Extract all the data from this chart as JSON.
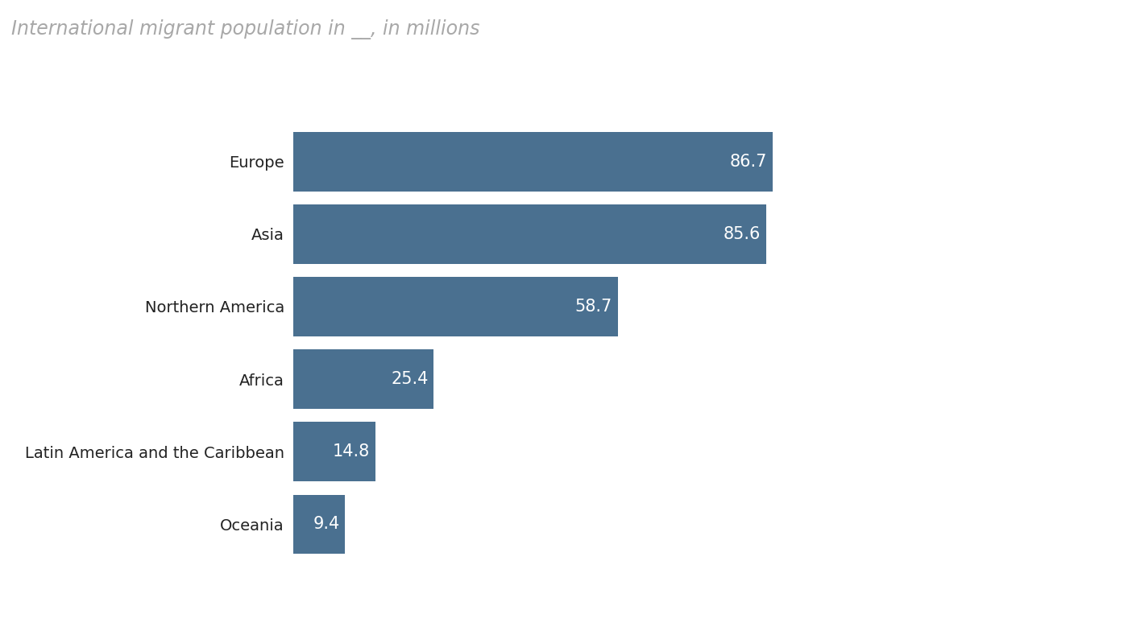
{
  "title": "International migrant population in __, in millions",
  "title_color": "#a8a8a8",
  "title_style": "italic",
  "title_fontsize": 17,
  "categories": [
    "Europe",
    "Asia",
    "Northern America",
    "Africa",
    "Latin America and the Caribbean",
    "Oceania"
  ],
  "values": [
    86.7,
    85.6,
    58.7,
    25.4,
    14.8,
    9.4
  ],
  "bar_color": "#4a7090",
  "label_color_inside": "#ffffff",
  "label_fontsize": 15,
  "category_fontsize": 14,
  "background_color": "#ffffff",
  "bar_height": 0.82,
  "xlim": [
    0,
    100
  ]
}
